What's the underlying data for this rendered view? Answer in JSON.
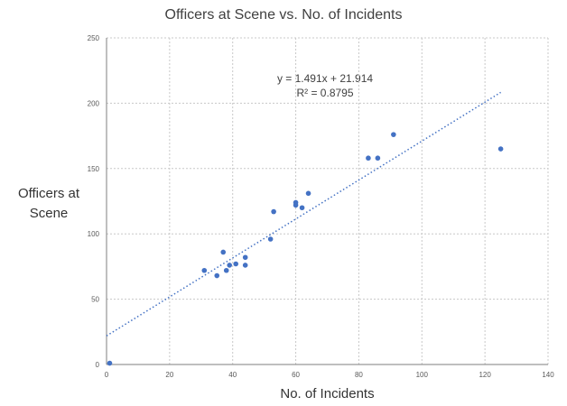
{
  "chart_data": {
    "type": "scatter",
    "title": "Officers at Scene vs. No. of Incidents",
    "xlabel": "No. of Incidents",
    "ylabel": "Officers at Scene",
    "xlim": [
      0,
      140
    ],
    "ylim": [
      0,
      250
    ],
    "x_ticks": [
      0,
      20,
      40,
      60,
      80,
      100,
      120,
      140
    ],
    "y_ticks": [
      0,
      50,
      100,
      150,
      200,
      250
    ],
    "grid": true,
    "marker_color": "#4472C4",
    "points": [
      {
        "x": 1,
        "y": 1
      },
      {
        "x": 31,
        "y": 72
      },
      {
        "x": 35,
        "y": 68
      },
      {
        "x": 37,
        "y": 86
      },
      {
        "x": 38,
        "y": 72
      },
      {
        "x": 39,
        "y": 76
      },
      {
        "x": 41,
        "y": 77
      },
      {
        "x": 44,
        "y": 82
      },
      {
        "x": 44,
        "y": 76
      },
      {
        "x": 52,
        "y": 96
      },
      {
        "x": 53,
        "y": 117
      },
      {
        "x": 60,
        "y": 124
      },
      {
        "x": 60,
        "y": 122
      },
      {
        "x": 62,
        "y": 120
      },
      {
        "x": 64,
        "y": 131
      },
      {
        "x": 83,
        "y": 158
      },
      {
        "x": 86,
        "y": 158
      },
      {
        "x": 91,
        "y": 176
      },
      {
        "x": 125,
        "y": 165
      }
    ],
    "trendline": {
      "type": "linear",
      "slope": 1.491,
      "intercept": 21.914,
      "x_range": [
        0,
        125
      ],
      "equation_text": "y = 1.491x + 21.914",
      "r2_text": "R² = 0.8795"
    }
  }
}
